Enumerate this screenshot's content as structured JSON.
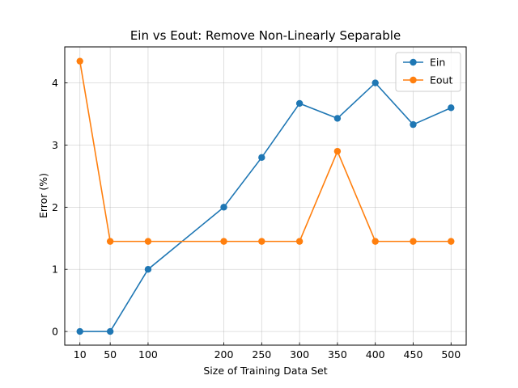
{
  "chart_data": {
    "type": "line",
    "title": "Ein vs Eout: Remove Non-Linearly Separable",
    "xlabel": "Size of Training Data Set",
    "ylabel": "Error (%)",
    "x": [
      10,
      50,
      100,
      200,
      250,
      300,
      350,
      400,
      450,
      500
    ],
    "xlim": [
      -10,
      520
    ],
    "ylim": [
      -0.22,
      4.58
    ],
    "xticks": [
      10,
      50,
      100,
      200,
      250,
      300,
      350,
      400,
      450,
      500
    ],
    "yticks": [
      0,
      1,
      2,
      3,
      4
    ],
    "grid": true,
    "legend_position": "top-right",
    "series": [
      {
        "name": "Ein",
        "color": "#1f77b4",
        "values": [
          0,
          0,
          1.0,
          2.0,
          2.8,
          3.67,
          3.43,
          4.0,
          3.33,
          3.6
        ]
      },
      {
        "name": "Eout",
        "color": "#ff7f0e",
        "values": [
          4.35,
          1.45,
          1.45,
          1.45,
          1.45,
          1.45,
          2.9,
          1.45,
          1.45,
          1.45
        ]
      }
    ]
  }
}
